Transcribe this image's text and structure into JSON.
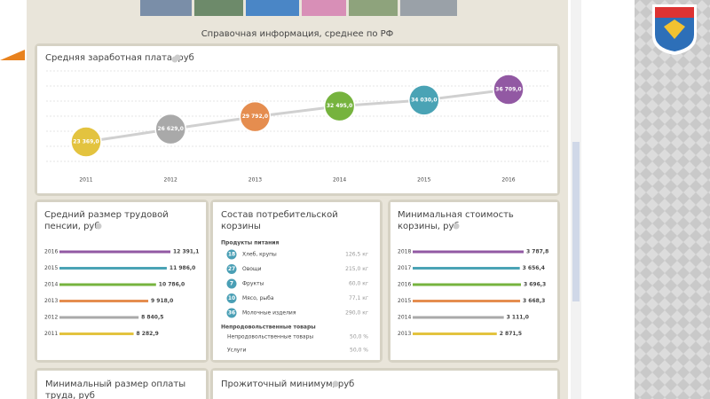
{
  "header": {
    "title": "Справочная информация, среднее по РФ"
  },
  "chart_data": [
    {
      "type": "line",
      "title": "Средняя заработная плата, руб",
      "categories": [
        "2011",
        "2012",
        "2013",
        "2014",
        "2015",
        "2016"
      ],
      "values": [
        23369.0,
        26629.0,
        29792.0,
        32495.0,
        34030.0,
        36709.0
      ],
      "value_labels": [
        "23 369,0",
        "26 629,0",
        "29 792,0",
        "32 495,0",
        "34 030,0",
        "36 709,0"
      ],
      "colors": [
        "#e3c33f",
        "#a9a9a9",
        "#e58d4f",
        "#76b33e",
        "#4aa3b5",
        "#9259a3"
      ],
      "color": "#d0d0d0"
    },
    {
      "type": "hbar",
      "title": "Средний размер трудовой пенсии, руб",
      "categories": [
        "2016",
        "2015",
        "2014",
        "2013",
        "2012",
        "2011"
      ],
      "values": [
        12391.1,
        11986.0,
        10786.0,
        9918.0,
        8840.5,
        8282.9
      ],
      "value_labels": [
        "12 391,1",
        "11 986,0",
        "10 786,0",
        "9 918,0",
        "8 840,5",
        "8 282,9"
      ],
      "colors": [
        "#9259a3",
        "#4aa3b5",
        "#76b33e",
        "#e58d4f",
        "#a9a9a9",
        "#e3c33f"
      ]
    },
    {
      "type": "hbar",
      "title": "Минимальная стоимость корзины, руб",
      "categories": [
        "2018",
        "2017",
        "2016",
        "2015",
        "2014",
        "2013"
      ],
      "values": [
        3787.8,
        3656.4,
        3696.3,
        3668.3,
        3111.0,
        2871.5
      ],
      "value_labels": [
        "3 787,8",
        "3 656,4",
        "3 696,3",
        "3 668,3",
        "3 111,0",
        "2 871,5"
      ],
      "colors": [
        "#9259a3",
        "#4aa3b5",
        "#76b33e",
        "#e58d4f",
        "#a9a9a9",
        "#e3c33f"
      ]
    }
  ],
  "basket": {
    "title": "Состав потребительской корзины",
    "food_heading": "Продукты питания",
    "food": [
      {
        "count": 18,
        "name": "Хлеб, крупы",
        "amount": "126,5 кг"
      },
      {
        "count": 27,
        "name": "Овощи",
        "amount": "215,0 кг"
      },
      {
        "count": 7,
        "name": "Фрукты",
        "amount": "60,0 кг"
      },
      {
        "count": 10,
        "name": "Мясо, рыба",
        "amount": "77,1 кг"
      },
      {
        "count": 36,
        "name": "Молочные изделия",
        "amount": "290,0 кг"
      }
    ],
    "nonfood_heading": "Непродовольственные товары",
    "nonfood": [
      {
        "name": "Непродовольственные товары",
        "amount": "50,0 %"
      },
      {
        "name": "Услуги",
        "amount": "50,0 %"
      }
    ]
  },
  "panels": [
    "Минимальный размер оплаты труда, руб",
    "Прожиточный минимум, руб"
  ]
}
